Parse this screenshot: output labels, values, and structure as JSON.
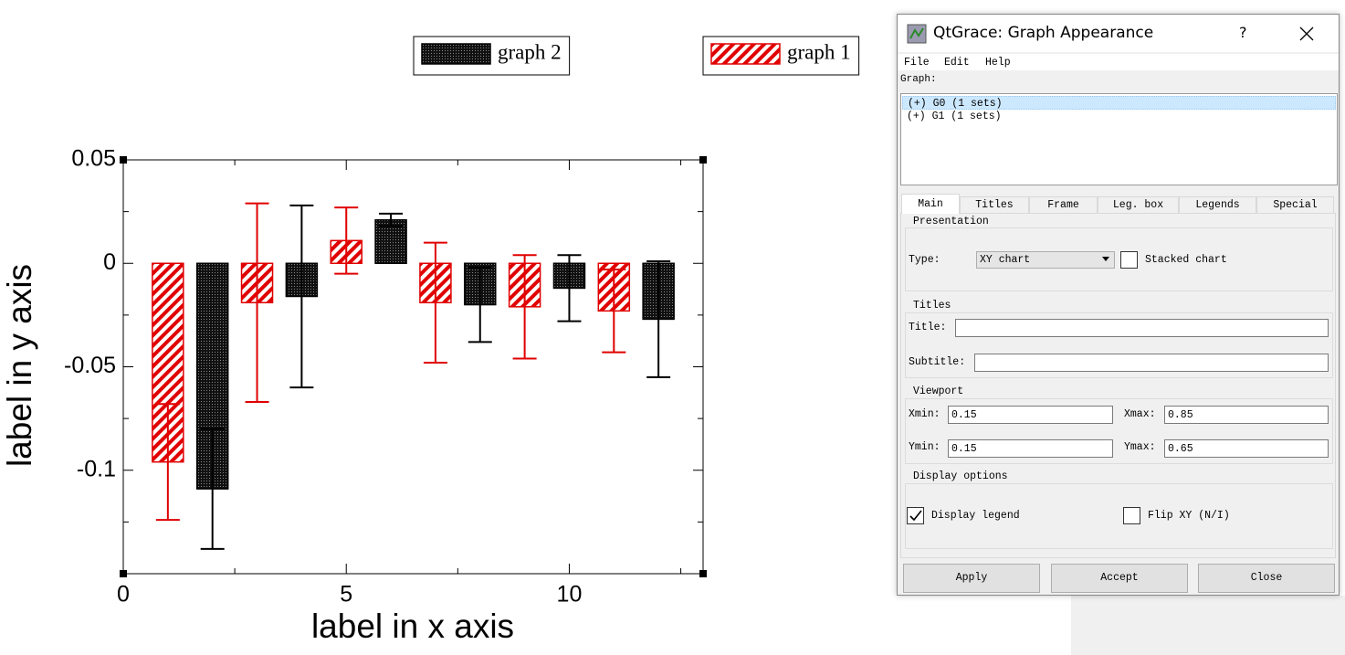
{
  "chart_data": {
    "type": "bar",
    "xlabel": "label in x axis",
    "ylabel": "label in y axis",
    "xlim": [
      0,
      13
    ],
    "ylim": [
      -0.15,
      0.05
    ],
    "xticks": [
      0,
      5,
      10
    ],
    "yticks": [
      0.05,
      0,
      -0.05,
      -0.1
    ],
    "xminor_ticks": [
      2.5,
      7.5,
      12.5
    ],
    "yminor_ticks": [
      0.025,
      -0.025,
      -0.075,
      -0.125
    ],
    "series": [
      {
        "name": "graph 1",
        "color": "#e00000",
        "x": [
          1,
          3,
          5,
          7,
          9,
          11
        ],
        "values": [
          -0.096,
          -0.019,
          0.011,
          -0.019,
          -0.021,
          -0.023
        ],
        "errors": [
          0.028,
          0.048,
          0.016,
          0.029,
          0.025,
          0.02
        ]
      },
      {
        "name": "graph 2",
        "color": "#000000",
        "x": [
          2,
          4,
          6,
          8,
          10,
          12
        ],
        "values": [
          -0.109,
          -0.016,
          0.021,
          -0.02,
          -0.012,
          -0.027
        ],
        "errors": [
          0.029,
          0.044,
          0.003,
          0.018,
          0.016,
          0.028
        ]
      }
    ]
  },
  "dialog": {
    "title": "QtGrace: Graph Appearance",
    "help": "?",
    "menu": [
      "File",
      "Edit",
      "Help"
    ],
    "graph_label": "Graph:",
    "graphs": [
      "(+) G0 (1 sets)",
      "(+) G1 (1 sets)"
    ],
    "selected_graph": 0,
    "tabs": [
      "Main",
      "Titles",
      "Frame",
      "Leg. box",
      "Legends",
      "Special"
    ],
    "active_tab": 0,
    "presentation": {
      "heading": "Presentation",
      "type_label": "Type:",
      "type_value": "XY chart",
      "stacked_label": "Stacked chart",
      "stacked_checked": false
    },
    "titles": {
      "heading": "Titles",
      "title_label": "Title:",
      "subtitle_label": "Subtitle:"
    },
    "viewport": {
      "heading": "Viewport",
      "xmin_label": "Xmin:",
      "xmin": "0.15",
      "xmax_label": "Xmax:",
      "xmax": "0.85",
      "ymin_label": "Ymin:",
      "ymin": "0.15",
      "ymax_label": "Ymax:",
      "ymax": "0.65"
    },
    "display_options": {
      "heading": "Display options",
      "legend_label": "Display legend",
      "legend_checked": true,
      "flip_label": "Flip XY (N/I)",
      "flip_checked": false
    },
    "buttons": [
      "Apply",
      "Accept",
      "Close"
    ]
  }
}
